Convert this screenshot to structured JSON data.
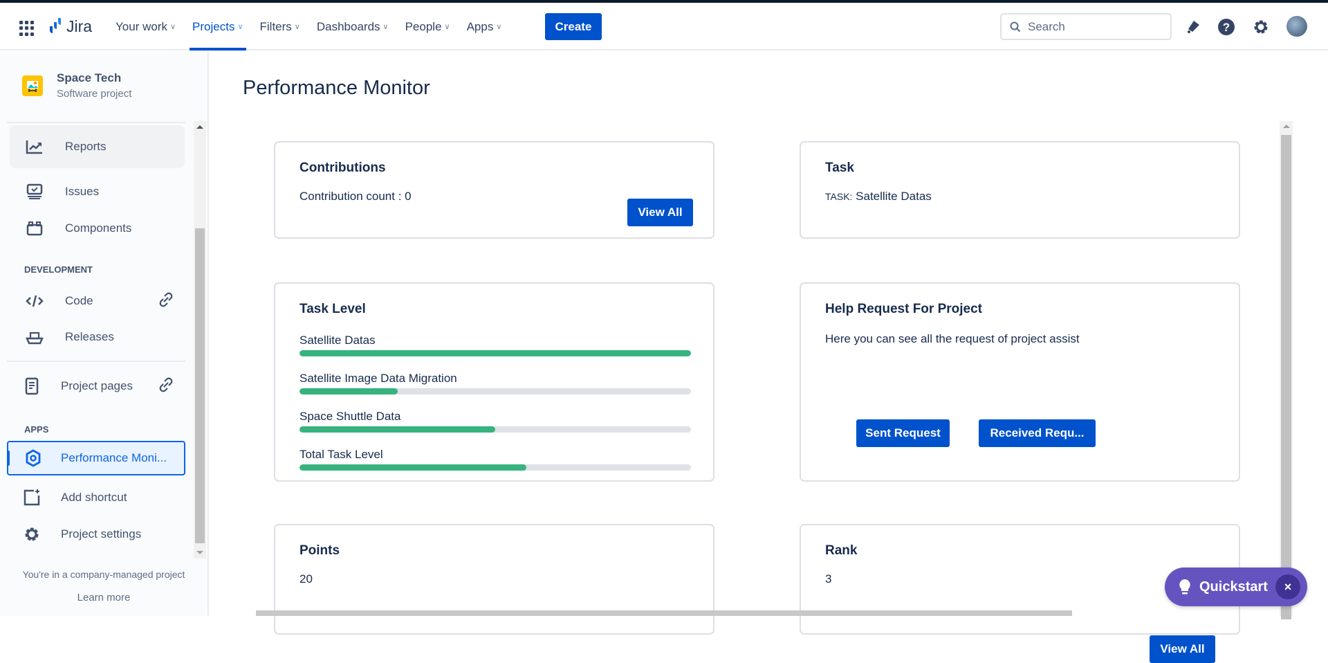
{
  "topbar": {
    "product": "Jira",
    "nav": [
      {
        "label": "Your work"
      },
      {
        "label": "Projects",
        "active": true
      },
      {
        "label": "Filters"
      },
      {
        "label": "Dashboards"
      },
      {
        "label": "People"
      },
      {
        "label": "Apps"
      }
    ],
    "create_label": "Create",
    "search_placeholder": "Search"
  },
  "sidebar": {
    "project_name": "Space Tech",
    "project_type": "Software project",
    "items": [
      {
        "label": "Reports",
        "icon": "chart-line-icon"
      },
      {
        "label": "Issues",
        "icon": "monitor-check-icon"
      },
      {
        "label": "Components",
        "icon": "components-icon"
      }
    ],
    "dev_heading": "DEVELOPMENT",
    "dev_items": [
      {
        "label": "Code",
        "icon": "code-icon"
      },
      {
        "label": "Releases",
        "icon": "ship-icon"
      }
    ],
    "project_pages": "Project pages",
    "apps_heading": "APPS",
    "apps_item": "Performance Moni...",
    "add_shortcut": "Add shortcut",
    "project_settings": "Project settings",
    "footer_text": "You're in a company-managed project",
    "learn_more": "Learn more"
  },
  "main": {
    "title": "Performance Monitor",
    "contributions": {
      "title": "Contributions",
      "count_text": "Contribution count : 0",
      "button": "View All"
    },
    "task": {
      "title": "Task",
      "prefix": "TASK:",
      "value": "Satellite Datas"
    },
    "task_level": {
      "title": "Task Level",
      "bars": [
        {
          "label": "Satellite Datas",
          "percent": 100
        },
        {
          "label": "Satellite Image Data Migration",
          "percent": 25
        },
        {
          "label": "Space Shuttle Data",
          "percent": 50
        },
        {
          "label": "Total Task Level",
          "percent": 58
        }
      ]
    },
    "help": {
      "title": "Help Request For Project",
      "desc": "Here you can see all the request of project assist",
      "sent": "Sent Request",
      "received": "Received Requ..."
    },
    "points": {
      "title": "Points",
      "value": "20"
    },
    "rank": {
      "title": "Rank",
      "value": "3",
      "button": "View All"
    }
  },
  "quickstart": {
    "label": "Quickstart",
    "close": "×"
  },
  "colors": {
    "primary": "#0052cc",
    "progress": "#36b37e",
    "quickstart": "#6554c0"
  }
}
